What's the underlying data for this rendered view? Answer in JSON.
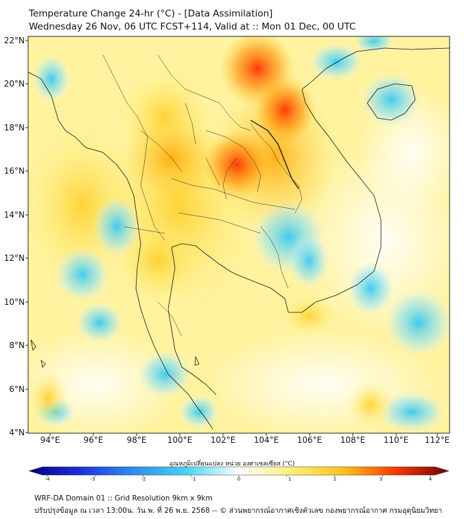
{
  "header": {
    "title_line1": "Temperature Change 24-hr (°C) - [Data Assimilation]",
    "title_line2": "Wednesday 26 Nov, 06 UTC FCST+114, Valid at :: Mon 01 Dec, 00 UTC"
  },
  "map": {
    "lat_labels": [
      "22°N",
      "20°N",
      "18°N",
      "16°N",
      "14°N",
      "12°N",
      "10°N",
      "8°N",
      "6°N",
      "4°N"
    ],
    "lon_labels": [
      "94°E",
      "96°E",
      "98°E",
      "100°E",
      "102°E",
      "104°E",
      "106°E",
      "108°E",
      "110°E",
      "112°E"
    ],
    "lat_range": [
      4,
      22.2
    ],
    "lon_range": [
      93,
      112.5
    ]
  },
  "colorbar": {
    "label": "อุณหภูมิเปลี่ยนแปลง หน่วย องศาเซลเซียส (°C)",
    "ticks": [
      "-4",
      "-3",
      "-2",
      "-1",
      "0",
      "1",
      "2",
      "3",
      "4"
    ],
    "range": [
      -4,
      4
    ],
    "colors": [
      "#07007a",
      "#1b2fe0",
      "#2f8df0",
      "#42d2f2",
      "#ffffff",
      "#fff07a",
      "#ffc21a",
      "#ff3a00",
      "#6e0000"
    ]
  },
  "footer": {
    "line1": "WRF-DA Domain 01 :: Grid Resolution 9km x 9km",
    "line2": "ปรับปรุงข้อมูล ณ เวลา 13:00น. วัน พ. ที่ 26 พ.ย. 2568 -- © ส่วนพยากรณ์อากาศเชิงตัวเลข กองพยากรณ์อากาศ กรมอุตุนิยมวิทยา"
  }
}
